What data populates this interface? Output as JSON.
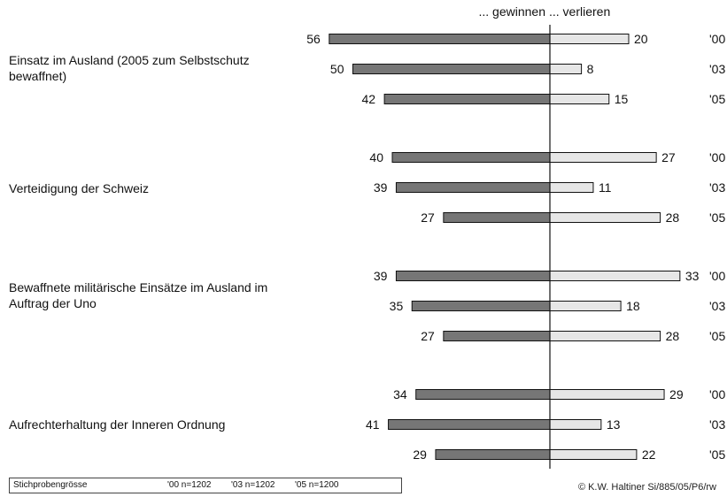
{
  "chart_data": {
    "type": "bar",
    "orientation": "diverging-horizontal",
    "headers": {
      "left": "... gewinnen",
      "right": "... verlieren"
    },
    "years": [
      "'00",
      "'03",
      "'05"
    ],
    "categories": [
      {
        "label": "Einsatz im Ausland (2005 zum Selbstschutz bewaffnet)",
        "gewinnen": [
          56,
          50,
          42
        ],
        "verlieren": [
          20,
          8,
          15
        ]
      },
      {
        "label": "Verteidigung der Schweiz",
        "gewinnen": [
          40,
          39,
          27
        ],
        "verlieren": [
          27,
          11,
          28
        ]
      },
      {
        "label": "Bewaffnete militärische Einsätze im Ausland im Auftrag der Uno",
        "gewinnen": [
          39,
          35,
          27
        ],
        "verlieren": [
          33,
          18,
          28
        ]
      },
      {
        "label": "Aufrechterhaltung der Inneren Ordnung",
        "gewinnen": [
          34,
          41,
          29
        ],
        "verlieren": [
          29,
          13,
          22
        ]
      }
    ],
    "colors": {
      "gewinnen": "#767676",
      "verlieren": "#e6e6e6",
      "outline": "#111111"
    }
  },
  "legend": {
    "title": "Stichprobengrösse",
    "samples": [
      "'00 n=1202",
      "'03 n=1202",
      "'05 n=1200"
    ]
  },
  "credit": "© K.W. Haltiner Si/885/05/P6/rw"
}
